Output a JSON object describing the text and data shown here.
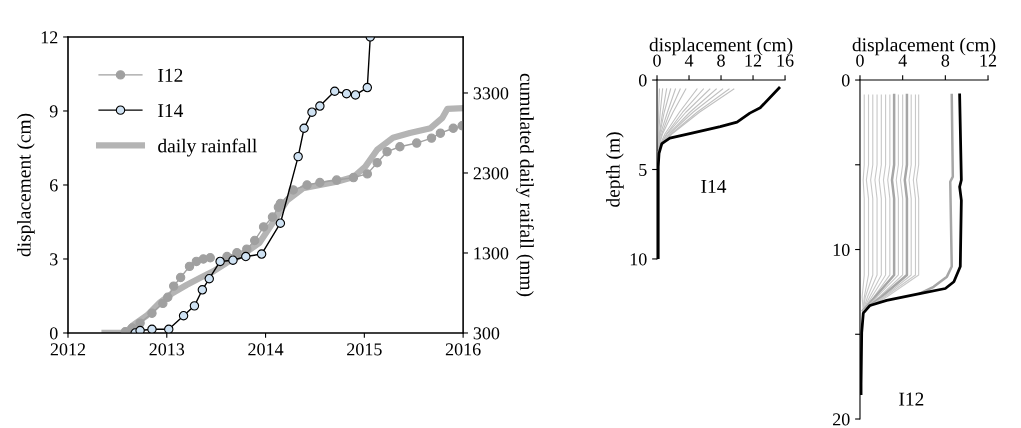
{
  "chart_data": [
    {
      "type": "line",
      "xlim": [
        2012,
        2016
      ],
      "xticks": [
        2012,
        2013,
        2014,
        2015,
        2016
      ],
      "ylim": [
        0,
        12
      ],
      "yticks": [
        0,
        3,
        6,
        9,
        12
      ],
      "y2lim": [
        300,
        4000
      ],
      "y2ticks": [
        300,
        1300,
        2300,
        3300
      ],
      "ylabel": "displacement (cm)",
      "y2label": "cumulated daily raifall (mm)",
      "legend": "top left",
      "marker": "circle",
      "series": [
        {
          "name": "I12",
          "color": "#a0a0a0",
          "x": [
            2012.58,
            2012.65,
            2012.73,
            2012.85,
            2012.96,
            2013.01,
            2013.07,
            2013.14,
            2013.23,
            2013.3,
            2013.37,
            2013.44,
            2013.52,
            2013.61,
            2013.71,
            2013.81,
            2013.89,
            2013.98,
            2014.07,
            2014.13,
            2014.15,
            2014.28,
            2014.42,
            2014.55,
            2014.72,
            2014.89,
            2015.03,
            2015.13,
            2015.23,
            2015.36,
            2015.53,
            2015.68,
            2015.77,
            2015.9,
            2015.99
          ],
          "values": [
            0.05,
            0.2,
            0.4,
            0.8,
            1.2,
            1.45,
            1.9,
            2.25,
            2.7,
            2.9,
            3.0,
            3.05,
            null,
            3.1,
            3.25,
            3.4,
            3.75,
            4.3,
            4.7,
            5.1,
            5.25,
            5.8,
            6.0,
            6.1,
            6.2,
            6.3,
            6.45,
            6.9,
            7.35,
            7.55,
            7.7,
            7.9,
            8.1,
            8.3,
            8.4
          ]
        },
        {
          "name": "I14",
          "color": "#000000",
          "x": [
            2012.68,
            2012.73,
            2012.85,
            2013.02,
            2013.17,
            2013.28,
            2013.36,
            2013.43,
            2013.54,
            2013.67,
            2013.8,
            2013.96,
            2014.15,
            2014.33,
            2014.39,
            2014.47,
            2014.55,
            2014.7,
            2014.82,
            2014.91,
            2015.03,
            2015.06
          ],
          "values": [
            0,
            0.1,
            0.15,
            0.15,
            0.7,
            1.1,
            1.75,
            2.2,
            2.9,
            2.95,
            3.1,
            3.2,
            4.45,
            7.15,
            8.3,
            8.95,
            9.2,
            9.8,
            9.7,
            9.65,
            9.95,
            12
          ]
        },
        {
          "name": "daily rainfall",
          "color": "#b4b4b4",
          "axis": "y2",
          "marker": "none",
          "x": [
            2012.37,
            2012.58,
            2012.66,
            2012.8,
            2012.93,
            2013.06,
            2013.2,
            2013.34,
            2013.47,
            2013.61,
            2013.77,
            2013.94,
            2014.08,
            2014.22,
            2014.38,
            2014.55,
            2014.72,
            2014.89,
            2015.01,
            2015.13,
            2015.29,
            2015.46,
            2015.67,
            2015.79,
            2015.84,
            2016.0
          ],
          "values": [
            300,
            300,
            400,
            520,
            680,
            800,
            900,
            990,
            1070,
            1180,
            1280,
            1430,
            1690,
            1960,
            2110,
            2150,
            2190,
            2250,
            2380,
            2590,
            2740,
            2800,
            2860,
            2990,
            3100,
            3110
          ]
        }
      ]
    },
    {
      "type": "line",
      "xlabel": "displacement (cm)",
      "ylabel": "depth (m)",
      "xlim": [
        0,
        16
      ],
      "xticks": [
        0,
        4,
        8,
        12,
        16
      ],
      "ylim": [
        10,
        0
      ],
      "yticks": [
        0,
        5,
        10
      ],
      "annotations": [
        "I14"
      ],
      "series": [
        {
          "color": "#c0c0c0",
          "x": [
            0.3,
            0.2,
            0.15,
            0.1
          ],
          "values": [
            0.5,
            1.8,
            3.0,
            3.9
          ]
        },
        {
          "color": "#c0c0c0",
          "x": [
            0.7,
            0.4,
            0.2,
            0.1
          ],
          "values": [
            0.5,
            1.8,
            3.0,
            3.9
          ]
        },
        {
          "color": "#c0c0c0",
          "x": [
            1.2,
            0.7,
            0.3,
            0.1
          ],
          "values": [
            0.5,
            1.8,
            3.0,
            3.9
          ]
        },
        {
          "color": "#c0c0c0",
          "x": [
            1.7,
            0.9,
            0.35,
            0.1
          ],
          "values": [
            0.5,
            1.8,
            3.0,
            3.9
          ]
        },
        {
          "color": "#c0c0c0",
          "x": [
            2.3,
            1.3,
            0.45,
            0.1
          ],
          "values": [
            0.5,
            1.8,
            3.0,
            3.9
          ]
        },
        {
          "color": "#c0c0c0",
          "x": [
            2.9,
            1.6,
            0.6,
            0.1
          ],
          "values": [
            0.5,
            1.8,
            3.0,
            3.9
          ]
        },
        {
          "color": "#c0c0c0",
          "x": [
            3.6,
            2.0,
            0.7,
            0.1
          ],
          "values": [
            0.5,
            1.8,
            3.0,
            3.9
          ]
        },
        {
          "color": "#c0c0c0",
          "x": [
            5.0,
            2.8,
            1.0,
            0.1
          ],
          "values": [
            0.5,
            1.8,
            3.0,
            3.9
          ]
        },
        {
          "color": "#c0c0c0",
          "x": [
            5.8,
            3.2,
            1.2,
            0.1
          ],
          "values": [
            0.5,
            1.8,
            3.0,
            3.9
          ]
        },
        {
          "color": "#c0c0c0",
          "x": [
            6.6,
            3.6,
            1.3,
            0.1
          ],
          "values": [
            0.5,
            1.8,
            3.0,
            3.9
          ]
        },
        {
          "color": "#c0c0c0",
          "x": [
            7.4,
            4.1,
            1.5,
            0.1
          ],
          "values": [
            0.5,
            1.8,
            3.0,
            3.9
          ]
        },
        {
          "color": "#c0c0c0",
          "x": [
            8.2,
            4.5,
            1.6,
            0.1
          ],
          "values": [
            0.5,
            1.8,
            3.0,
            3.9
          ]
        },
        {
          "color": "#c0c0c0",
          "x": [
            9.0,
            5.0,
            1.8,
            0.1
          ],
          "values": [
            0.5,
            1.8,
            3.0,
            3.9
          ]
        },
        {
          "color": "#c0c0c0",
          "x": [
            9.6,
            5.3,
            1.9,
            0.1
          ],
          "values": [
            0.5,
            1.8,
            3.0,
            3.9
          ]
        },
        {
          "color": "#000000",
          "x": [
            15.25,
            12.9,
            11.6,
            10,
            7.9,
            4.5,
            1.6,
            0.6,
            0.25,
            0.15,
            0.15
          ],
          "values": [
            0.45,
            1.55,
            1.85,
            2.35,
            2.6,
            2.95,
            3.25,
            3.55,
            4.1,
            4.85,
            10
          ]
        }
      ]
    },
    {
      "type": "line",
      "xlabel": "displacement (cm)",
      "xlim": [
        0,
        12
      ],
      "xticks": [
        0,
        4,
        8,
        12
      ],
      "ylim": [
        20,
        0
      ],
      "yticks": [
        0,
        {
          "value": 5,
          "label": null
        },
        10,
        {
          "value": 15,
          "label": null
        },
        20
      ],
      "annotations": [
        "I12"
      ],
      "series": [
        {
          "color": "#c8c8c8",
          "x": [
            0.4,
            0.4,
            0.3,
            0.4,
            0.4,
            0.2,
            0.3
          ],
          "values": [
            0.88,
            5.0,
            5.9,
            7.0,
            11.5,
            12.8,
            13.6
          ]
        },
        {
          "color": "#c8c8c8",
          "x": [
            0.8,
            0.8,
            0.6,
            0.8,
            0.8,
            0.4,
            0.3
          ],
          "values": [
            0.88,
            5.0,
            5.9,
            7.0,
            11.5,
            12.8,
            13.6
          ]
        },
        {
          "color": "#c8c8c8",
          "x": [
            1.2,
            1.2,
            1.0,
            1.2,
            1.2,
            0.5,
            0.3
          ],
          "values": [
            0.88,
            5.0,
            5.9,
            7.0,
            11.5,
            12.8,
            13.6
          ]
        },
        {
          "color": "#c8c8c8",
          "x": [
            1.6,
            1.6,
            1.4,
            1.6,
            1.6,
            0.7,
            0.3
          ],
          "values": [
            0.88,
            5.0,
            5.9,
            7.0,
            11.5,
            12.8,
            13.6
          ]
        },
        {
          "color": "#c8c8c8",
          "x": [
            2.0,
            2.0,
            1.8,
            2.0,
            2.0,
            0.9,
            0.3
          ],
          "values": [
            0.88,
            5.0,
            5.9,
            7.0,
            11.5,
            12.8,
            13.6
          ]
        },
        {
          "color": "#c8c8c8",
          "x": [
            2.4,
            2.4,
            2.2,
            2.4,
            2.4,
            1.1,
            0.3
          ],
          "values": [
            0.88,
            5.0,
            5.9,
            7.0,
            11.5,
            12.8,
            13.6
          ]
        },
        {
          "color": "#c8c8c8",
          "x": [
            2.8,
            2.8,
            2.6,
            2.8,
            2.8,
            1.3,
            0.3
          ],
          "values": [
            0.88,
            5.0,
            5.9,
            7.0,
            11.5,
            12.8,
            13.6
          ]
        },
        {
          "color": "#a6a6a6",
          "x": [
            3.2,
            3.2,
            3.0,
            3.2,
            3.2,
            1.4,
            0.3
          ],
          "values": [
            0.88,
            5.0,
            5.9,
            7.0,
            11.5,
            12.8,
            13.6
          ]
        },
        {
          "color": "#c8c8c8",
          "x": [
            3.6,
            3.6,
            3.4,
            3.6,
            3.6,
            1.6,
            0.3
          ],
          "values": [
            0.88,
            5.0,
            5.9,
            7.0,
            11.5,
            12.8,
            13.6
          ]
        },
        {
          "color": "#c8c8c8",
          "x": [
            4.0,
            4.0,
            3.8,
            4.0,
            4.0,
            1.8,
            0.3
          ],
          "values": [
            0.88,
            5.0,
            5.9,
            7.0,
            11.5,
            12.8,
            13.6
          ]
        },
        {
          "color": "#a6a6a6",
          "x": [
            4.4,
            4.4,
            4.2,
            4.4,
            4.4,
            2.0,
            0.3
          ],
          "values": [
            0.88,
            5.0,
            5.9,
            7.0,
            11.5,
            12.8,
            13.6
          ]
        },
        {
          "color": "#c8c8c8",
          "x": [
            4.8,
            4.8,
            4.6,
            4.8,
            4.8,
            2.2,
            0.3
          ],
          "values": [
            0.88,
            5.0,
            5.9,
            7.0,
            11.5,
            12.8,
            13.6
          ]
        },
        {
          "color": "#c8c8c8",
          "x": [
            5.2,
            5.2,
            5.0,
            5.2,
            5.2,
            2.3,
            0.3
          ],
          "values": [
            0.88,
            5.0,
            5.9,
            7.0,
            11.5,
            12.8,
            13.6
          ]
        },
        {
          "color": "#c8c8c8",
          "x": [
            5.5,
            5.5,
            5.3,
            5.5,
            5.5,
            2.5,
            0.3
          ],
          "values": [
            0.88,
            5.0,
            5.9,
            7.0,
            11.5,
            12.8,
            13.6
          ]
        },
        {
          "color": "#a6a6a6",
          "x": [
            8.6,
            8.7,
            8.46,
            8.6,
            8.15,
            6.9,
            5.6
          ],
          "values": [
            0.88,
            5.7,
            6.0,
            11.0,
            11.6,
            12.2,
            12.6
          ]
        },
        {
          "color": "#000000",
          "x": [
            9.34,
            9.5,
            9.34,
            9.5,
            9.4,
            8.8,
            8.0,
            5.6,
            2.5,
            0.94,
            0.31,
            0.16,
            0.1,
            0.1
          ],
          "values": [
            0.88,
            5.9,
            6.3,
            7.1,
            11.0,
            11.9,
            12.3,
            12.6,
            13.0,
            13.3,
            13.75,
            14.9,
            17.9,
            18.5
          ]
        }
      ]
    }
  ]
}
